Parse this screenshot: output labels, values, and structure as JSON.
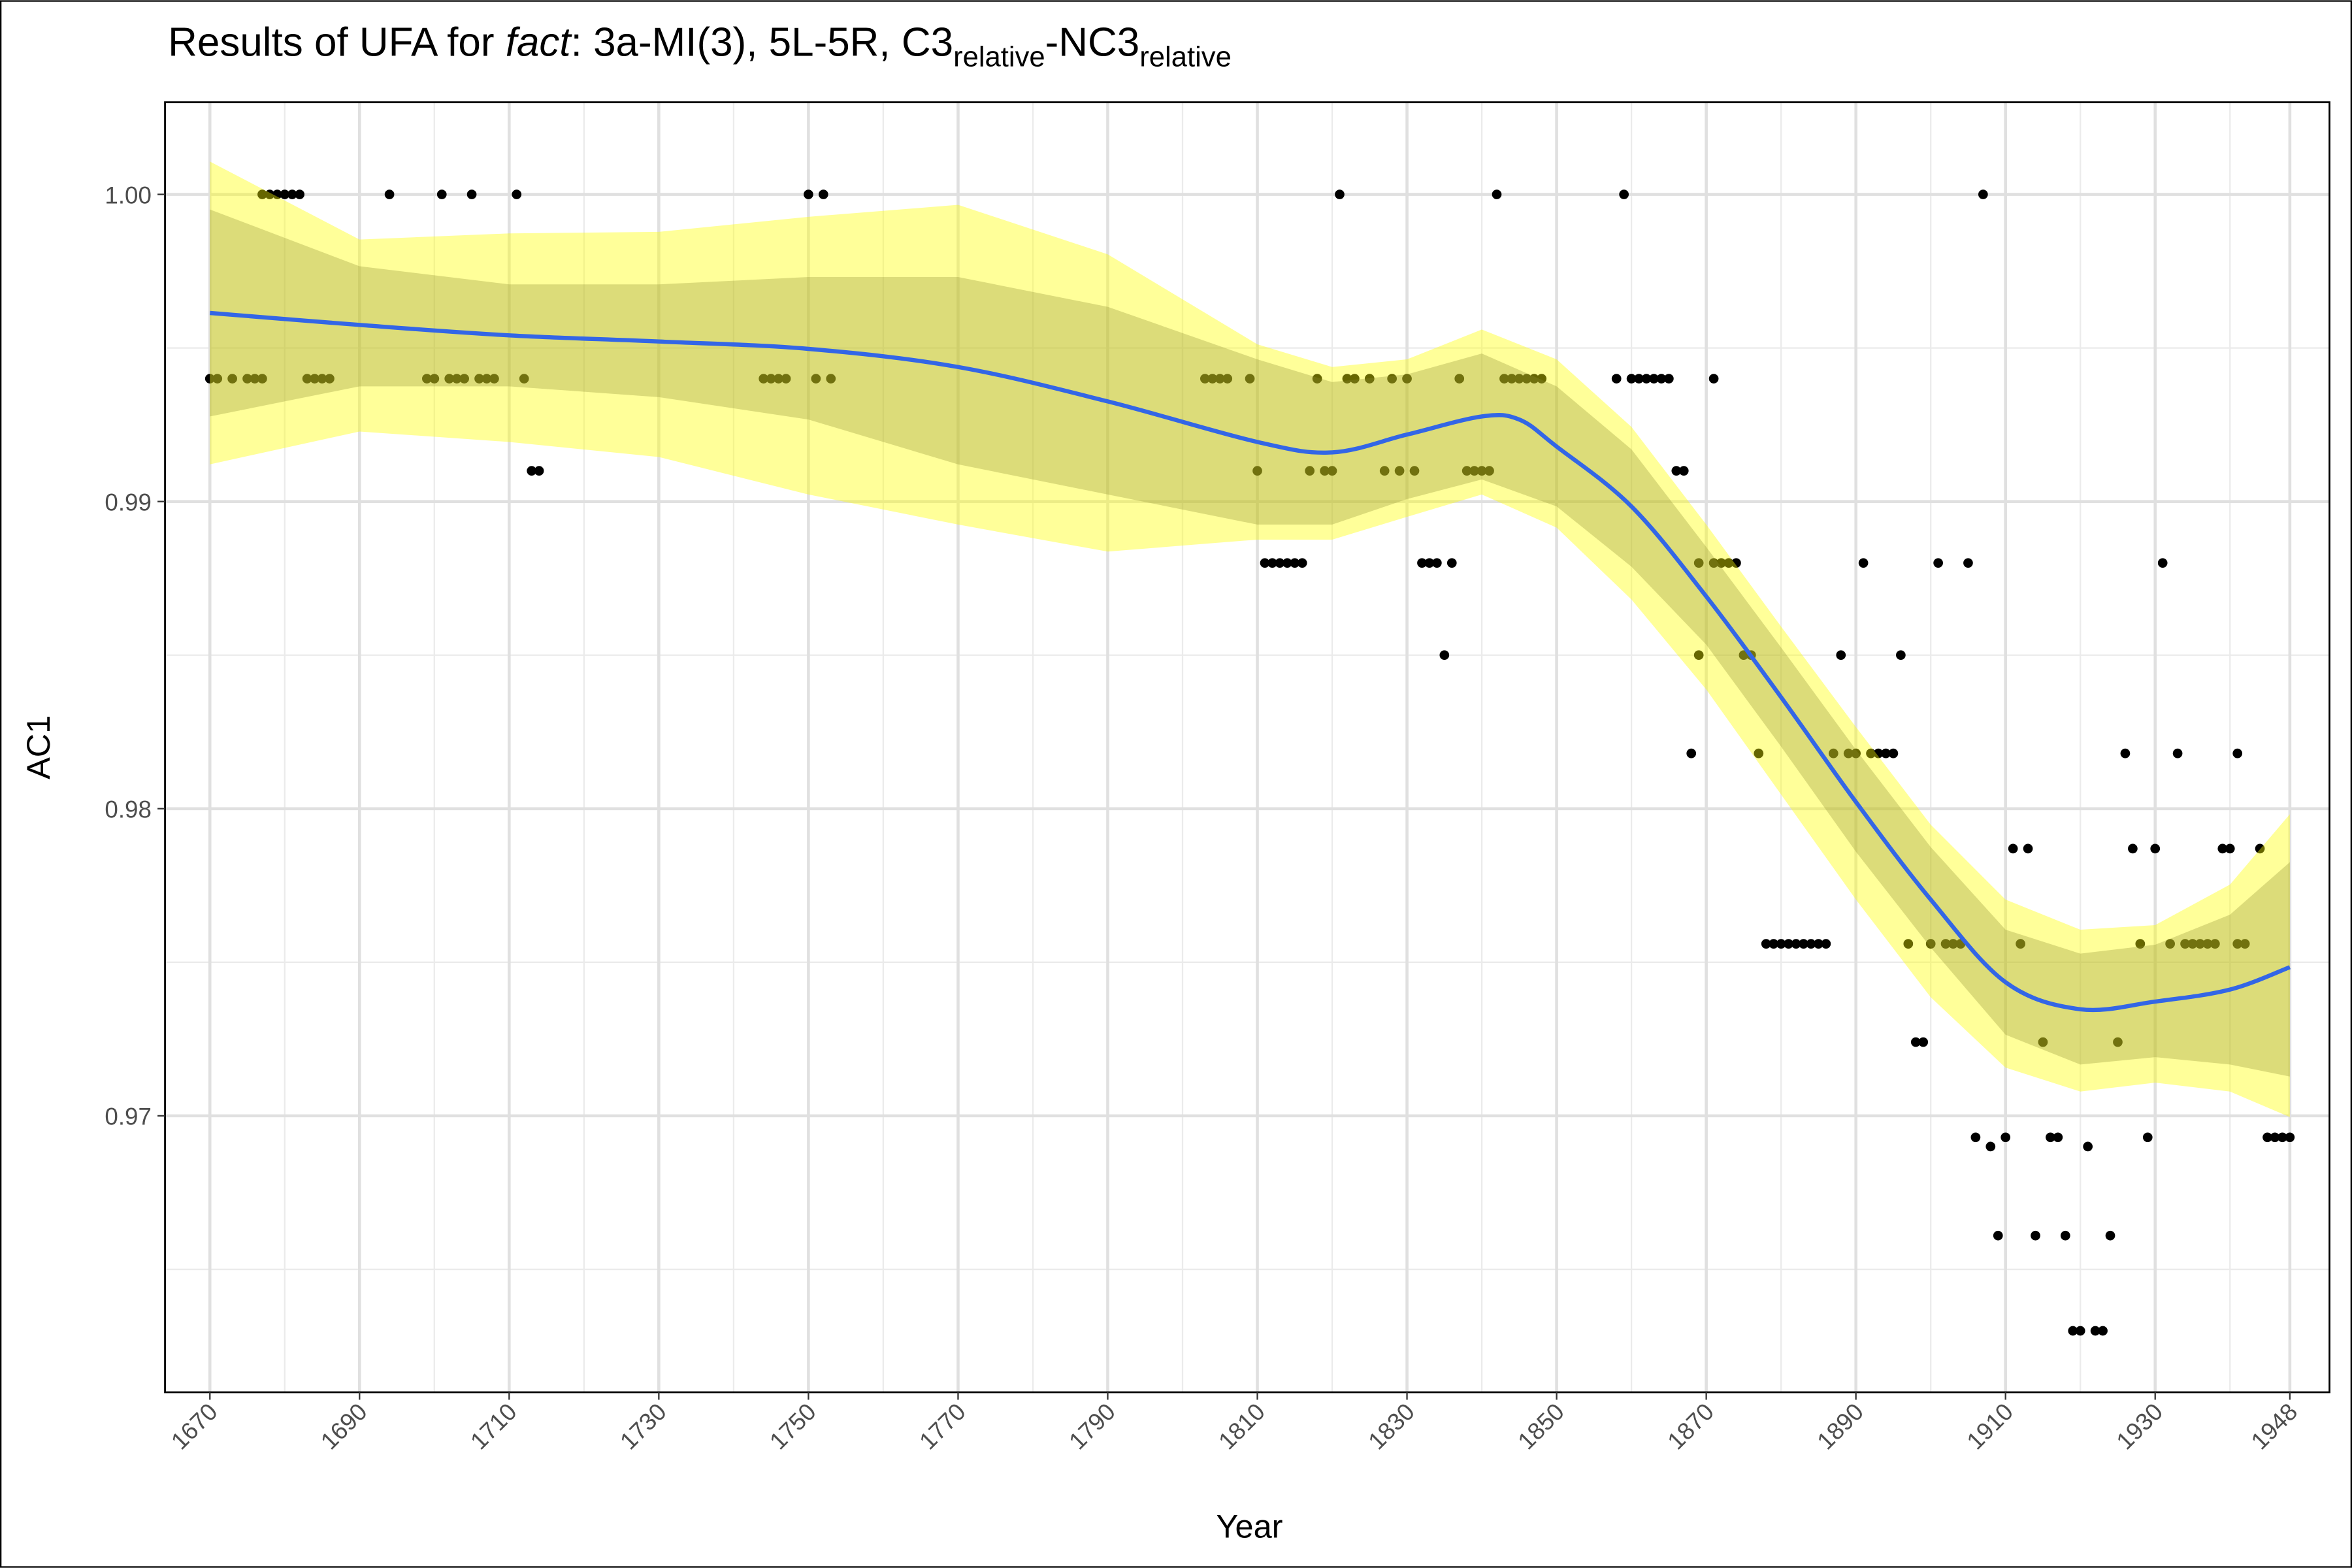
{
  "chart_data": {
    "type": "scatter",
    "title": [
      {
        "text": "Results of UFA for "
      },
      {
        "text": "fact",
        "style": "italic"
      },
      {
        "text": ": 3a-MI(3), 5L-5R, C3"
      },
      {
        "text": "relative",
        "style": "sub"
      },
      {
        "text": "-NC3"
      },
      {
        "text": "relative",
        "style": "sub"
      }
    ],
    "x_label": "Year",
    "y_label": "AC1",
    "xlim": [
      1664,
      1953.3
    ],
    "ylim": [
      0.961,
      1.003
    ],
    "xticks": [
      1670,
      1690,
      1710,
      1730,
      1750,
      1770,
      1790,
      1810,
      1830,
      1850,
      1870,
      1890,
      1910,
      1930,
      1948
    ],
    "xminor": [
      1680,
      1700,
      1720,
      1740,
      1760,
      1780,
      1800,
      1820,
      1840,
      1860,
      1880,
      1900,
      1920,
      1940
    ],
    "yticks": [
      0.97,
      0.98,
      0.99,
      {
        "value": 1,
        "label": "1.00"
      }
    ],
    "yminor": [
      0.965,
      0.975,
      0.985,
      0.995
    ],
    "grid": true,
    "color": "#000000",
    "x": [
      1677,
      1678,
      1679,
      1680,
      1681,
      1682,
      1694,
      1701,
      1705,
      1711,
      1750,
      1752,
      1821,
      1842,
      1859,
      1907,
      1670,
      1671,
      1673,
      1675,
      1676,
      1677,
      1683,
      1684,
      1685,
      1686,
      1699,
      1700,
      1702,
      1703,
      1704,
      1706,
      1707,
      1708,
      1712,
      1744,
      1745,
      1746,
      1747,
      1751,
      1753,
      1803,
      1804,
      1805,
      1806,
      1809,
      1818,
      1822,
      1823,
      1825,
      1828,
      1830,
      1837,
      1843,
      1844,
      1845,
      1846,
      1847,
      1848,
      1858,
      1860,
      1861,
      1862,
      1863,
      1864,
      1865,
      1871,
      1713,
      1714,
      1810,
      1817,
      1819,
      1820,
      1827,
      1829,
      1831,
      1838,
      1839,
      1840,
      1841,
      1866,
      1867,
      1811,
      1812,
      1813,
      1814,
      1815,
      1816,
      1832,
      1833,
      1834,
      1836,
      1869,
      1871,
      1872,
      1873,
      1874,
      1891,
      1901,
      1905,
      1931,
      1835,
      1869,
      1875,
      1876,
      1888,
      1896,
      1868,
      1877,
      1887,
      1889,
      1890,
      1892,
      1893,
      1894,
      1895,
      1926,
      1933,
      1941,
      1911,
      1913,
      1927,
      1930,
      1939,
      1940,
      1944,
      1878,
      1879,
      1880,
      1881,
      1882,
      1883,
      1884,
      1885,
      1886,
      1897,
      1900,
      1902,
      1903,
      1904,
      1912,
      1928,
      1932,
      1934,
      1935,
      1936,
      1937,
      1938,
      1941,
      1942,
      1898,
      1899,
      1915,
      1925,
      1906,
      1910,
      1916,
      1917,
      1929,
      1945,
      1946,
      1947,
      1948,
      1908,
      1921,
      1909,
      1914,
      1918,
      1924,
      1919,
      1920,
      1922,
      1923
    ],
    "values": [
      1,
      1,
      1,
      1,
      1,
      1,
      1,
      1,
      1,
      1,
      1,
      1,
      1,
      1,
      1,
      1,
      0.994,
      0.994,
      0.994,
      0.994,
      0.994,
      0.994,
      0.994,
      0.994,
      0.994,
      0.994,
      0.994,
      0.994,
      0.994,
      0.994,
      0.994,
      0.994,
      0.994,
      0.994,
      0.994,
      0.994,
      0.994,
      0.994,
      0.994,
      0.994,
      0.994,
      0.994,
      0.994,
      0.994,
      0.994,
      0.994,
      0.994,
      0.994,
      0.994,
      0.994,
      0.994,
      0.994,
      0.994,
      0.994,
      0.994,
      0.994,
      0.994,
      0.994,
      0.994,
      0.994,
      0.994,
      0.994,
      0.994,
      0.994,
      0.994,
      0.994,
      0.994,
      0.991,
      0.991,
      0.991,
      0.991,
      0.991,
      0.991,
      0.991,
      0.991,
      0.991,
      0.991,
      0.991,
      0.991,
      0.991,
      0.991,
      0.991,
      0.988,
      0.988,
      0.988,
      0.988,
      0.988,
      0.988,
      0.988,
      0.988,
      0.988,
      0.988,
      0.988,
      0.988,
      0.988,
      0.988,
      0.988,
      0.988,
      0.988,
      0.988,
      0.988,
      0.985,
      0.985,
      0.985,
      0.985,
      0.985,
      0.985,
      0.9818,
      0.9818,
      0.9818,
      0.9818,
      0.9818,
      0.9818,
      0.9818,
      0.9818,
      0.9818,
      0.9818,
      0.9818,
      0.9818,
      0.9787,
      0.9787,
      0.9787,
      0.9787,
      0.9787,
      0.9787,
      0.9787,
      0.9756,
      0.9756,
      0.9756,
      0.9756,
      0.9756,
      0.9756,
      0.9756,
      0.9756,
      0.9756,
      0.9756,
      0.9756,
      0.9756,
      0.9756,
      0.9756,
      0.9756,
      0.9756,
      0.9756,
      0.9756,
      0.9756,
      0.9756,
      0.9756,
      0.9756,
      0.9756,
      0.9756,
      0.9724,
      0.9724,
      0.9724,
      0.9724,
      0.9693,
      0.9693,
      0.9693,
      0.9693,
      0.9693,
      0.9693,
      0.9693,
      0.9693,
      0.9693,
      0.969,
      0.969,
      0.9661,
      0.9661,
      0.9661,
      0.9661,
      0.963,
      0.963,
      0.963,
      0.963
    ],
    "smooth": {
      "color": "#3366e6",
      "x": [
        1670,
        1690,
        1710,
        1730,
        1750,
        1770,
        1790,
        1810,
        1820,
        1830,
        1840,
        1845,
        1850,
        1860,
        1870,
        1880,
        1890,
        1900,
        1910,
        1920,
        1930,
        1940,
        1948
      ],
      "values": [
        0.99614,
        0.99575,
        0.99541,
        0.99521,
        0.99497,
        0.99438,
        0.99326,
        0.99194,
        0.9916,
        0.99218,
        0.99277,
        0.99267,
        0.99179,
        0.98984,
        0.98691,
        0.98363,
        0.98022,
        0.97704,
        0.97435,
        0.97347,
        0.97372,
        0.97411,
        0.97484
      ]
    },
    "ribbons": [
      {
        "color": "#ffff00",
        "x": [
          1670,
          1690,
          1710,
          1730,
          1750,
          1770,
          1790,
          1810,
          1820,
          1830,
          1840,
          1850,
          1860,
          1870,
          1880,
          1890,
          1900,
          1910,
          1920,
          1930,
          1940,
          1948
        ],
        "upper": [
          1.00107,
          0.99853,
          0.99873,
          0.99878,
          0.99927,
          0.99966,
          0.99805,
          0.99512,
          0.99438,
          0.99463,
          0.9956,
          0.99463,
          0.99243,
          0.98925,
          0.98593,
          0.98266,
          0.97948,
          0.97704,
          0.97606,
          0.97621,
          0.97753,
          0.97982
        ],
        "lower": [
          0.99121,
          0.99228,
          0.99194,
          0.99145,
          0.99023,
          0.98925,
          0.98837,
          0.98876,
          0.98876,
          0.9895,
          0.99023,
          0.98915,
          0.98681,
          0.98388,
          0.98046,
          0.97704,
          0.97386,
          0.97157,
          0.97079,
          0.97108,
          0.97079,
          0.96996
        ]
      },
      {
        "color": "#8a8a32",
        "x": [
          1670,
          1690,
          1710,
          1730,
          1750,
          1770,
          1790,
          1810,
          1820,
          1830,
          1840,
          1850,
          1860,
          1870,
          1880,
          1890,
          1900,
          1910,
          1920,
          1930,
          1940,
          1948
        ],
        "upper": [
          0.99951,
          0.99766,
          0.99707,
          0.99707,
          0.99731,
          0.99731,
          0.99634,
          0.99463,
          0.99389,
          0.99414,
          0.99482,
          0.99375,
          0.9917,
          0.98852,
          0.98525,
          0.98192,
          0.97875,
          0.97606,
          0.97528,
          0.97557,
          0.97655,
          0.97826
        ],
        "lower": [
          0.99277,
          0.99375,
          0.99375,
          0.9934,
          0.99267,
          0.99121,
          0.99023,
          0.98925,
          0.98925,
          0.99008,
          0.99072,
          0.98984,
          0.98788,
          0.98534,
          0.98202,
          0.9786,
          0.97548,
          0.97264,
          0.97167,
          0.97191,
          0.97167,
          0.97128
        ]
      }
    ]
  }
}
